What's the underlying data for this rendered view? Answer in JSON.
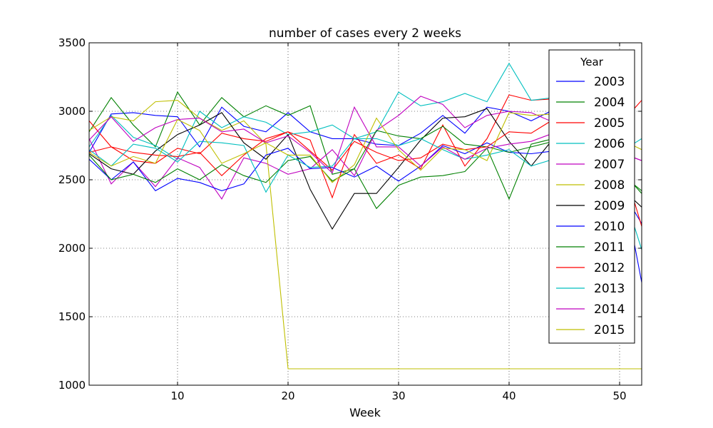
{
  "chart_data": {
    "type": "line",
    "title": "number of cases every 2 weeks",
    "xlabel": "Week",
    "ylabel": "",
    "xlim": [
      2,
      52
    ],
    "ylim": [
      1000,
      3500
    ],
    "xticks": [
      10,
      20,
      30,
      40,
      50
    ],
    "yticks": [
      1000,
      1500,
      2000,
      2500,
      3000,
      3500
    ],
    "grid": true,
    "legend_title": "Year",
    "legend_position": "top-right",
    "x": [
      2,
      4,
      6,
      8,
      10,
      12,
      14,
      16,
      18,
      20,
      22,
      24,
      26,
      28,
      30,
      32,
      34,
      36,
      38,
      40,
      42,
      44,
      46,
      48,
      50,
      52
    ],
    "series": [
      {
        "name": "2003",
        "color": "#0000ff",
        "values": [
          2700,
          2980,
          2990,
          2970,
          2960,
          2740,
          3030,
          2890,
          2850,
          2990,
          2850,
          2800,
          2800,
          2760,
          2750,
          2840,
          2970,
          2840,
          3030,
          3000,
          2930,
          3010,
          2950,
          2880,
          2600,
          1750
        ]
      },
      {
        "name": "2004",
        "color": "#008000",
        "values": [
          2850,
          3100,
          2900,
          2740,
          3140,
          2900,
          3100,
          2960,
          3040,
          2970,
          3040,
          2540,
          2580,
          2290,
          2460,
          2520,
          2530,
          2560,
          2730,
          2360,
          2760,
          2800,
          2750,
          2700,
          2580,
          2400
        ]
      },
      {
        "name": "2005",
        "color": "#ff0000",
        "values": [
          2930,
          2740,
          2640,
          2620,
          2730,
          2690,
          2840,
          2800,
          2780,
          2850,
          2790,
          2370,
          2830,
          2620,
          2680,
          2580,
          2900,
          2600,
          2800,
          3120,
          3080,
          3090,
          3020,
          2980,
          2900,
          3080
        ]
      },
      {
        "name": "2006",
        "color": "#00bfbf",
        "values": [
          2740,
          2970,
          2810,
          2750,
          2650,
          3000,
          2880,
          2960,
          2920,
          2830,
          2850,
          2900,
          2800,
          2850,
          3140,
          3040,
          3070,
          3130,
          3070,
          3350,
          3080,
          3100,
          3000,
          2950,
          2700,
          2800
        ]
      },
      {
        "name": "2007",
        "color": "#bf00bf",
        "values": [
          2800,
          2470,
          2630,
          2450,
          2660,
          2590,
          2360,
          2660,
          2620,
          2540,
          2580,
          2720,
          2530,
          2860,
          2970,
          3110,
          3050,
          2880,
          2970,
          3000,
          2990,
          2920,
          2870,
          2820,
          2700,
          2640
        ]
      },
      {
        "name": "2008",
        "color": "#bfbf00",
        "values": [
          2860,
          2960,
          2930,
          3070,
          3080,
          2950,
          2860,
          2930,
          2760,
          1120,
          1120,
          1120,
          1120,
          1120,
          1120,
          1120,
          1120,
          1120,
          1120,
          1120,
          1120,
          1120,
          1120,
          1120,
          1120,
          1120
        ]
      },
      {
        "name": "2009",
        "color": "#000000",
        "values": [
          2690,
          2580,
          2540,
          2710,
          2830,
          2900,
          2990,
          2770,
          2650,
          2830,
          2430,
          2140,
          2400,
          2400,
          2590,
          2790,
          2950,
          2960,
          3020,
          2780,
          2600,
          2800,
          2700,
          2600,
          2450,
          2300
        ]
      },
      {
        "name": "2010",
        "color": "#0000ff",
        "values": [
          2650,
          2500,
          2630,
          2420,
          2510,
          2480,
          2420,
          2470,
          2680,
          2730,
          2580,
          2590,
          2520,
          2600,
          2490,
          2600,
          2750,
          2690,
          2770,
          2700,
          2690,
          2710,
          2660,
          2600,
          2450,
          2180
        ]
      },
      {
        "name": "2011",
        "color": "#008000",
        "values": [
          2680,
          2500,
          2540,
          2480,
          2580,
          2500,
          2610,
          2530,
          2480,
          2640,
          2670,
          2490,
          2580,
          2860,
          2820,
          2800,
          2890,
          2760,
          2740,
          2700,
          2740,
          2780,
          2700,
          2640,
          2550,
          2420
        ]
      },
      {
        "name": "2012",
        "color": "#ff0000",
        "values": [
          2700,
          2740,
          2700,
          2680,
          2670,
          2700,
          2530,
          2680,
          2800,
          2850,
          2710,
          2570,
          2780,
          2700,
          2640,
          2660,
          2760,
          2720,
          2740,
          2850,
          2840,
          2940,
          2880,
          2820,
          2700,
          2160
        ]
      },
      {
        "name": "2013",
        "color": "#00bfbf",
        "values": [
          2720,
          2600,
          2760,
          2730,
          2630,
          2780,
          2770,
          2750,
          2410,
          2680,
          2590,
          2600,
          2800,
          2800,
          2750,
          2800,
          2720,
          2650,
          2680,
          2720,
          2600,
          2650,
          2640,
          2600,
          2500,
          1990
        ]
      },
      {
        "name": "2014",
        "color": "#bf00bf",
        "values": [
          2790,
          2960,
          2780,
          2880,
          2940,
          2950,
          2850,
          2870,
          2770,
          2820,
          2700,
          2550,
          3030,
          2740,
          2740,
          2600,
          2740,
          2650,
          2730,
          2760,
          2780,
          2840,
          2800,
          2760,
          2700,
          2640
        ]
      },
      {
        "name": "2015",
        "color": "#bfbf00",
        "values": [
          2700,
          2600,
          2670,
          2620,
          2940,
          2860,
          2620,
          2690,
          2770,
          2680,
          2680,
          2480,
          2610,
          2950,
          2720,
          2570,
          2730,
          2720,
          2640,
          2990,
          2970,
          2980,
          2920,
          2880,
          2800,
          2720
        ]
      }
    ]
  }
}
